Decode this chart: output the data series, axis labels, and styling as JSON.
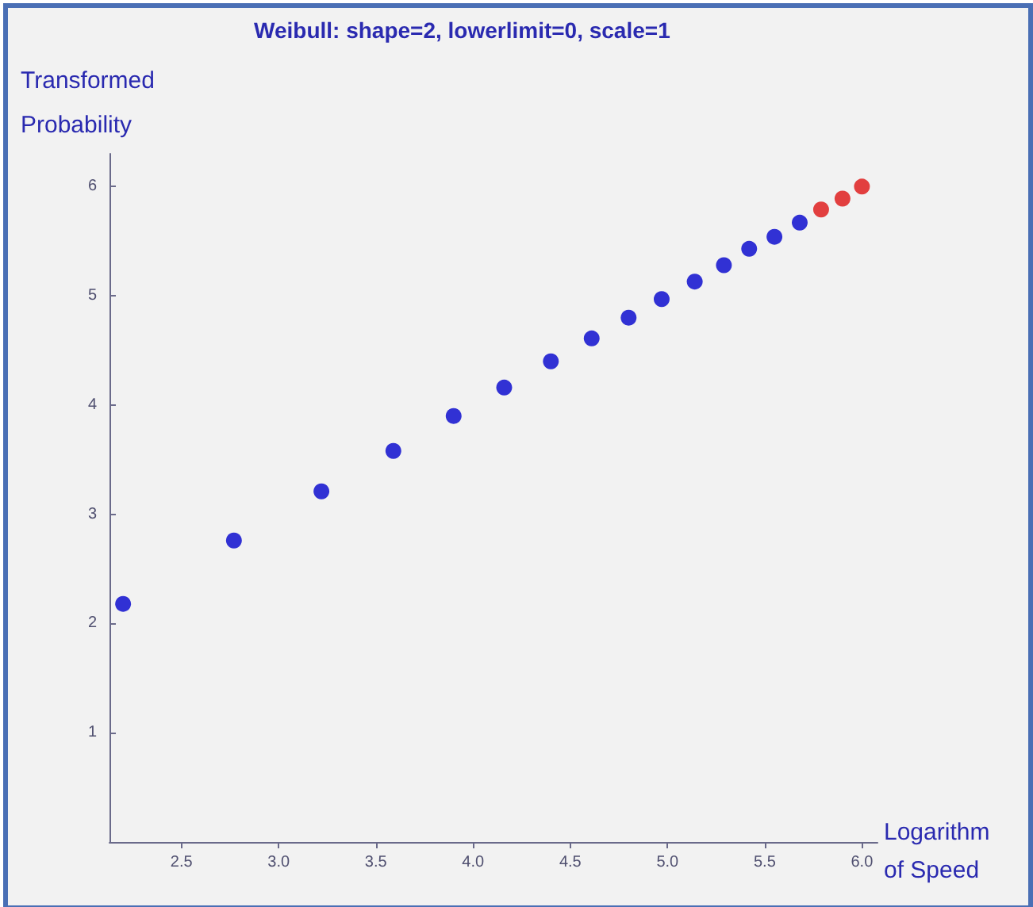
{
  "chart_data": {
    "type": "scatter",
    "title": "Weibull: shape=2, lowerlimit=0, scale=1",
    "xlabel": "Logarithm of Speed",
    "ylabel": "Transformed Probability",
    "marker": "circle",
    "grid": false,
    "xlim": [
      2.13,
      6.08
    ],
    "ylim": [
      0,
      6.3
    ],
    "xticks": [
      2.5,
      {
        "value": 3,
        "label": "3.0"
      },
      3.5,
      {
        "value": 4,
        "label": "4.0"
      },
      4.5,
      {
        "value": 5,
        "label": "5.0"
      },
      5.5,
      {
        "value": 6,
        "label": "6.0"
      }
    ],
    "yticks": [
      1,
      2,
      3,
      4,
      5,
      6
    ],
    "series": [
      {
        "color": "#0000cc",
        "x": [
          2.2,
          2.77,
          3.22,
          3.59,
          3.9,
          4.16,
          4.4,
          4.61,
          4.8,
          4.97,
          5.14,
          5.29,
          5.42,
          5.55,
          5.68
        ],
        "values": [
          2.18,
          2.76,
          3.21,
          3.58,
          3.9,
          4.16,
          4.4,
          4.61,
          4.8,
          4.97,
          5.13,
          5.28,
          5.43,
          5.54,
          5.67
        ]
      },
      {
        "color": "#dd1111",
        "x": [
          5.79,
          5.9,
          6.0
        ],
        "values": [
          5.79,
          5.89,
          6.0
        ]
      }
    ]
  }
}
